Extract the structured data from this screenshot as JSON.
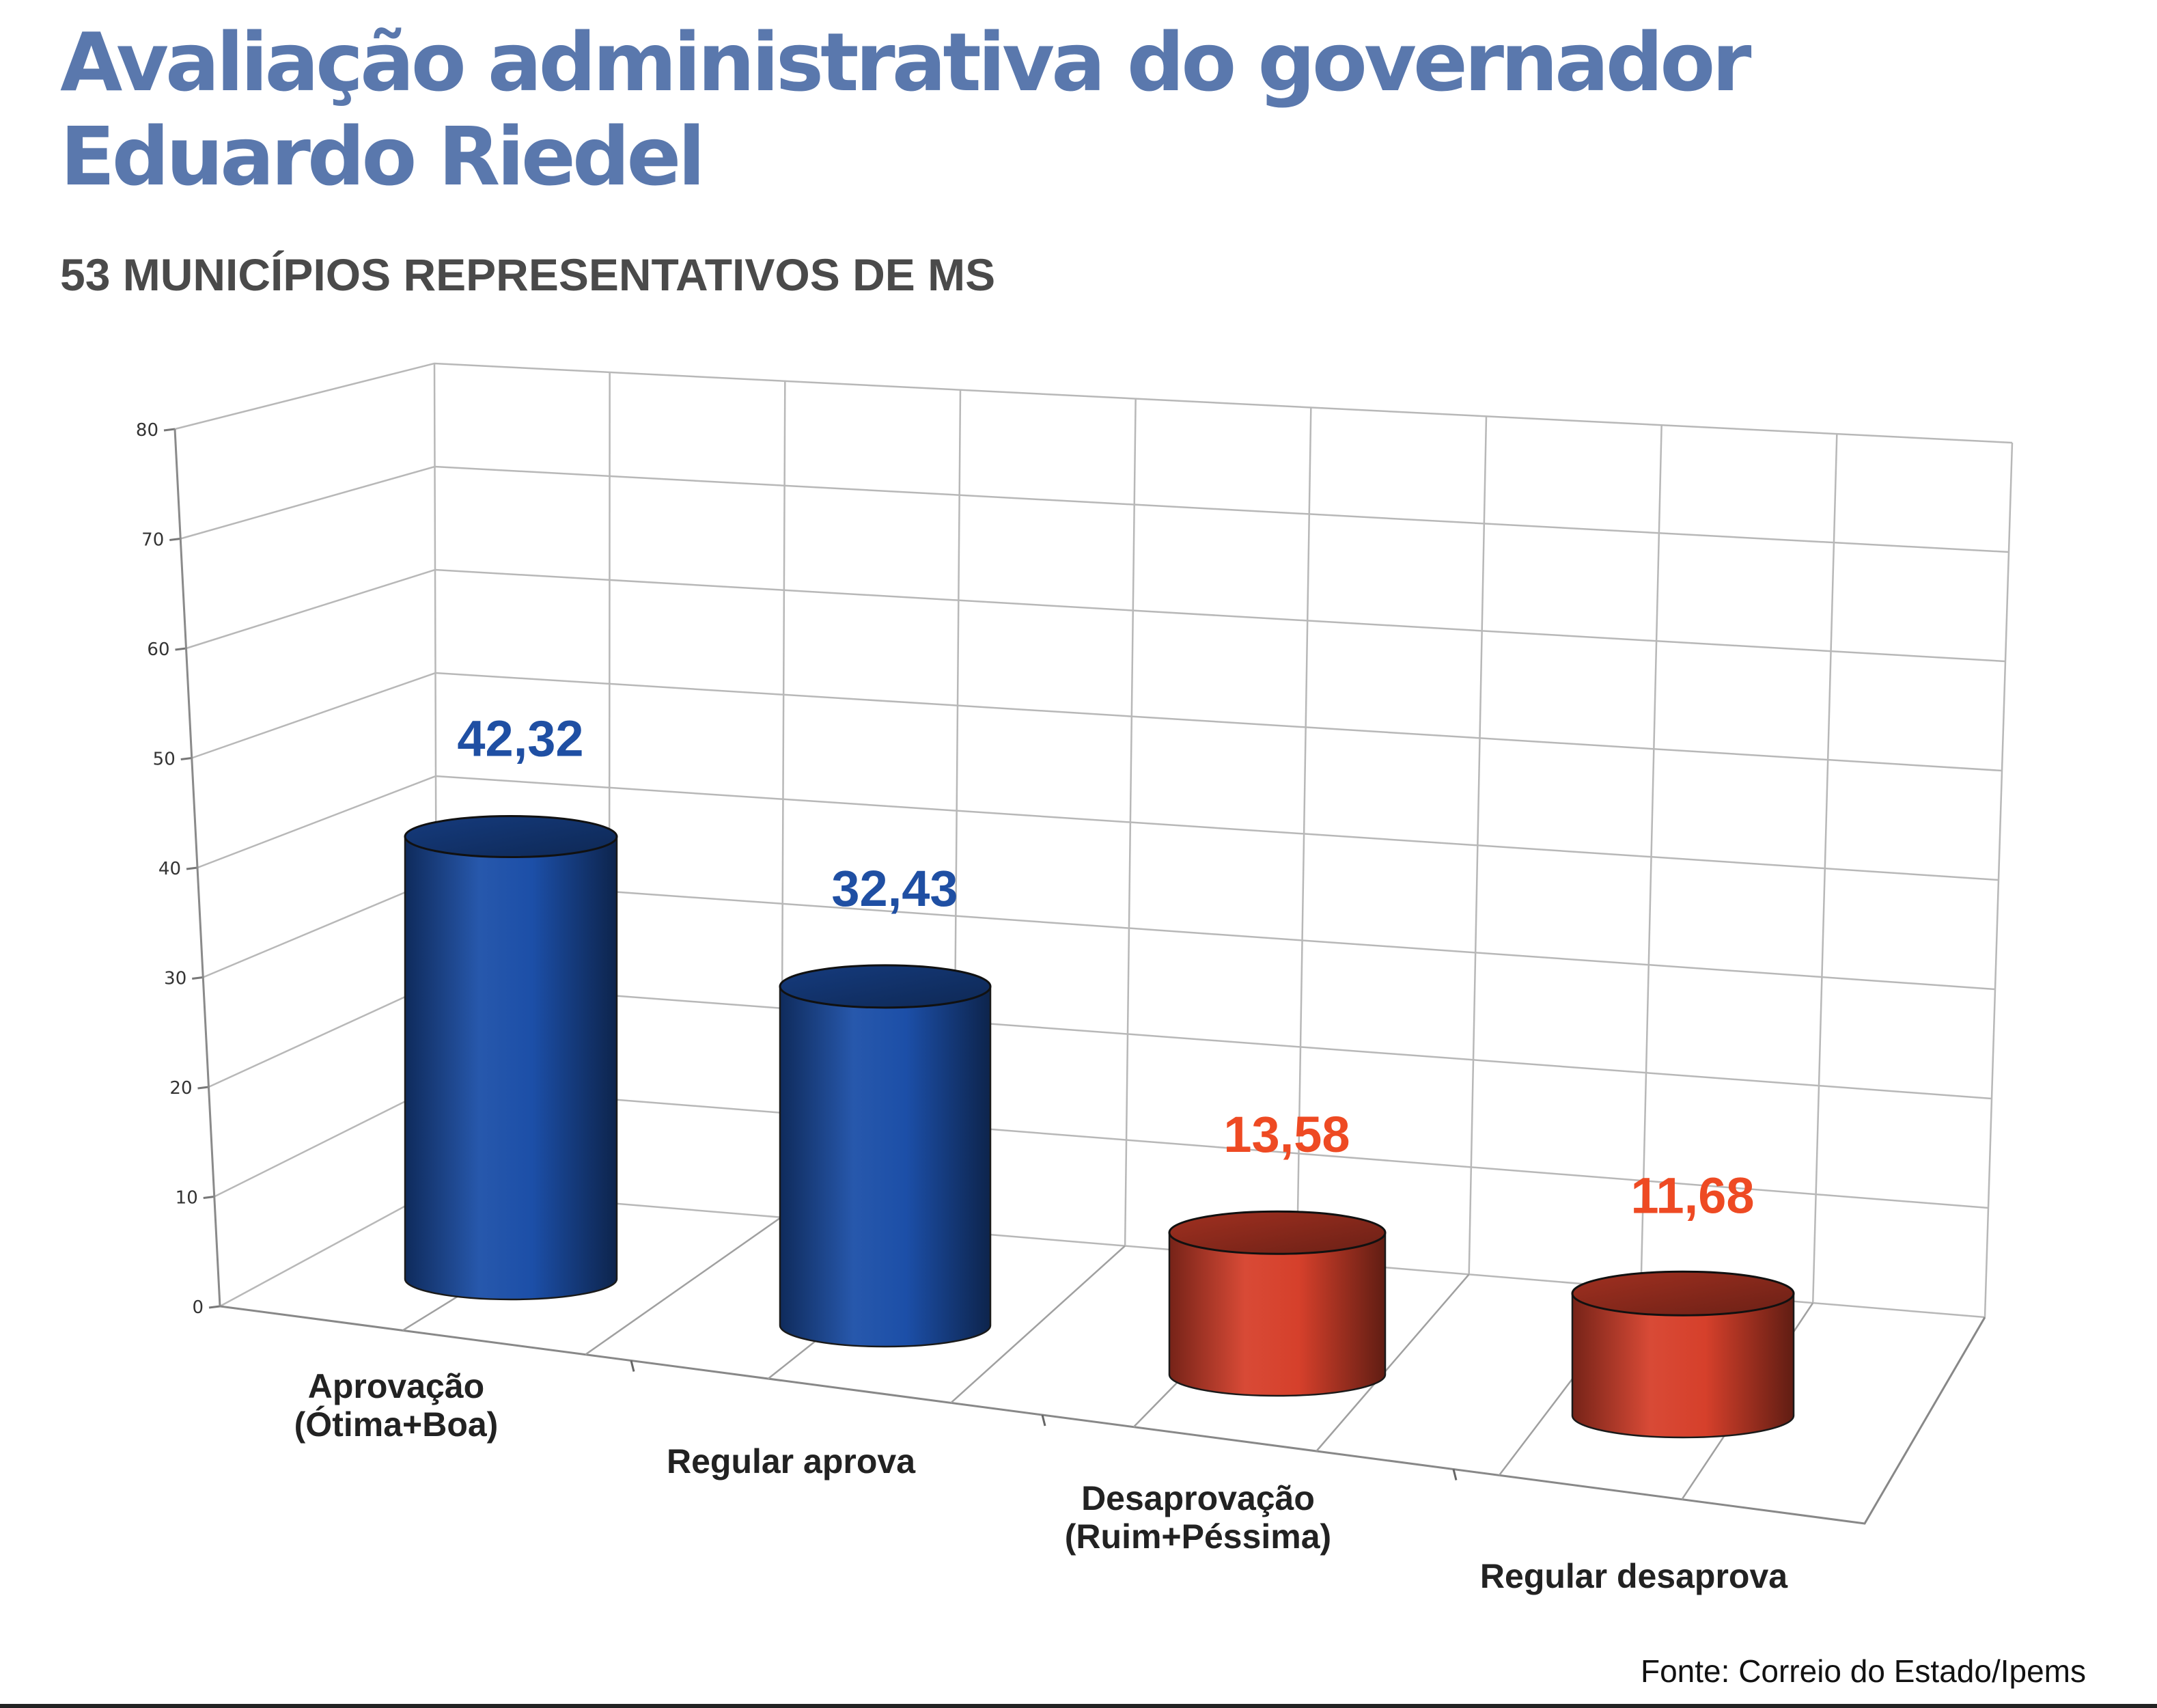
{
  "title_line1": "Avaliação administrativa do governador",
  "title_line2": "Eduardo Riedel",
  "subtitle": "53 MUNICÍPIOS REPRESENTATIVOS DE MS",
  "source": "Fonte: Correio do Estado/Ipems",
  "chart_data": {
    "type": "bar",
    "style": "3d-cylinder",
    "categories": [
      [
        "Aprovação",
        "(Ótima+Boa)"
      ],
      [
        "Regular aprova"
      ],
      [
        "Desaprovação",
        "(Ruim+Péssima)"
      ],
      [
        "Regular desaprova"
      ]
    ],
    "values": [
      42.32,
      32.43,
      13.58,
      11.68
    ],
    "value_labels": [
      "42,32",
      "32,43",
      "13,58",
      "11,68"
    ],
    "bar_colors": [
      "#1c4fa8",
      "#1c4fa8",
      "#d6402b",
      "#d6402b"
    ],
    "label_colors": [
      "#1f4fa3",
      "#1f4fa3",
      "#ee4a23",
      "#ee4a23"
    ],
    "yticks": [
      "0",
      "10",
      "20",
      "30",
      "40",
      "50",
      "60",
      "70",
      "80"
    ],
    "ylim": [
      0,
      80
    ],
    "grid": true
  }
}
